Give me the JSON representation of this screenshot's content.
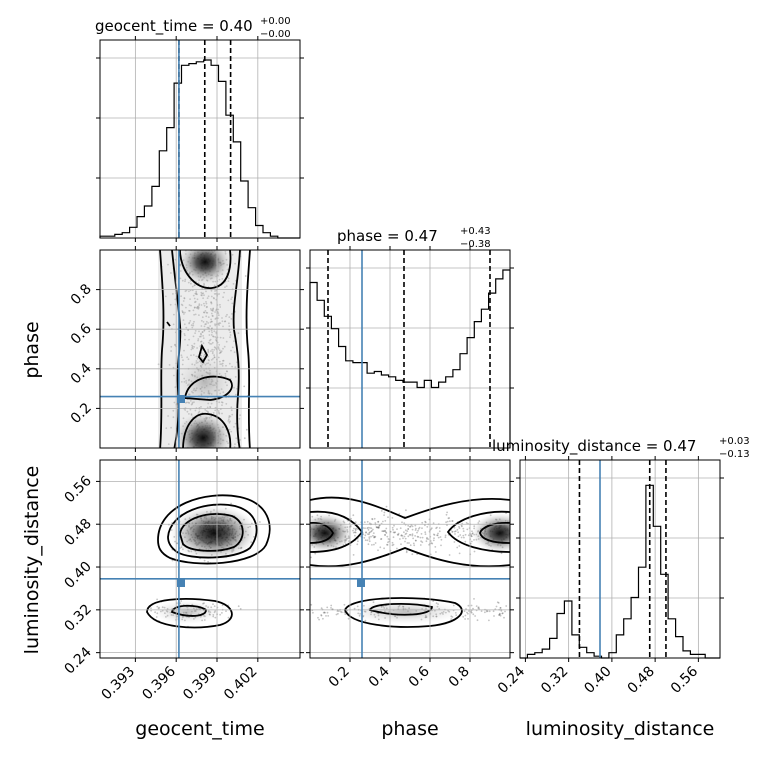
{
  "chart_data": {
    "type": "corner",
    "parameters": [
      "geocent_time",
      "phase",
      "luminosity_distance"
    ],
    "truths": [
      0.3962,
      0.26,
      0.378
    ],
    "titles": [
      {
        "label": "geocent_time = 0.40",
        "plus": "+0.00",
        "minus": "−0.00"
      },
      {
        "label": "phase = 0.47",
        "plus": "+0.43",
        "minus": "−0.38"
      },
      {
        "label": "luminosity_distance = 0.47",
        "plus": "+0.03",
        "minus": "−0.13"
      }
    ],
    "axis_labels": {
      "x": [
        "geocent_time",
        "phase",
        "luminosity_distance"
      ],
      "y": [
        "phase",
        "luminosity_distance"
      ]
    },
    "ranges": [
      [
        0.3904,
        0.4051
      ],
      [
        0.0,
        1.0
      ],
      [
        0.23,
        0.6
      ]
    ],
    "ticks": {
      "geocent_time": {
        "values": [
          0.393,
          0.396,
          0.399,
          0.402
        ],
        "labels": [
          "0.393",
          "0.396",
          "0.399",
          "0.402"
        ]
      },
      "phase": {
        "values": [
          0.2,
          0.4,
          0.6,
          0.8
        ],
        "labels": [
          "0.2",
          "0.4",
          "0.6",
          "0.8"
        ]
      },
      "luminosity_distance": {
        "values": [
          0.24,
          0.32,
          0.4,
          0.48,
          0.56
        ],
        "labels": [
          "0.24",
          "0.32",
          "0.40",
          "0.48",
          "0.56"
        ]
      }
    },
    "quantiles": [
      [
        0.3962,
        0.3981,
        0.4
      ],
      [
        0.09,
        0.47,
        0.9
      ],
      [
        0.34,
        0.47,
        0.5
      ]
    ],
    "histograms": [
      {
        "bins": [
          0.3904,
          0.4051
        ],
        "counts": [
          0.01,
          0.01,
          0.02,
          0.03,
          0.06,
          0.12,
          0.18,
          0.29,
          0.49,
          0.62,
          0.87,
          0.97,
          0.98,
          0.99,
          1.0,
          0.97,
          0.88,
          0.69,
          0.54,
          0.32,
          0.17,
          0.07,
          0.03,
          0.01,
          0.0,
          0.0,
          0.0
        ]
      },
      {
        "bins": [
          0.0,
          1.0
        ],
        "counts": [
          0.93,
          0.83,
          0.74,
          0.67,
          0.57,
          0.49,
          0.48,
          0.48,
          0.42,
          0.43,
          0.41,
          0.4,
          0.38,
          0.37,
          0.37,
          0.34,
          0.38,
          0.34,
          0.37,
          0.4,
          0.44,
          0.53,
          0.62,
          0.71,
          0.78,
          0.87,
          0.95,
          1.0
        ]
      },
      {
        "bins": [
          0.23,
          0.6
        ],
        "counts": [
          0.0,
          0.02,
          0.03,
          0.05,
          0.11,
          0.25,
          0.32,
          0.13,
          0.06,
          0.03,
          0.01,
          0.0,
          0.03,
          0.13,
          0.22,
          0.34,
          0.51,
          0.97,
          0.74,
          0.47,
          0.22,
          0.12,
          0.04,
          0.02,
          0.02,
          0.0,
          0.0
        ]
      }
    ],
    "contours_2d": [
      {
        "x": "geocent_time",
        "y": "phase"
      },
      {
        "x": "geocent_time",
        "y": "luminosity_distance"
      },
      {
        "x": "phase",
        "y": "luminosity_distance"
      }
    ]
  }
}
